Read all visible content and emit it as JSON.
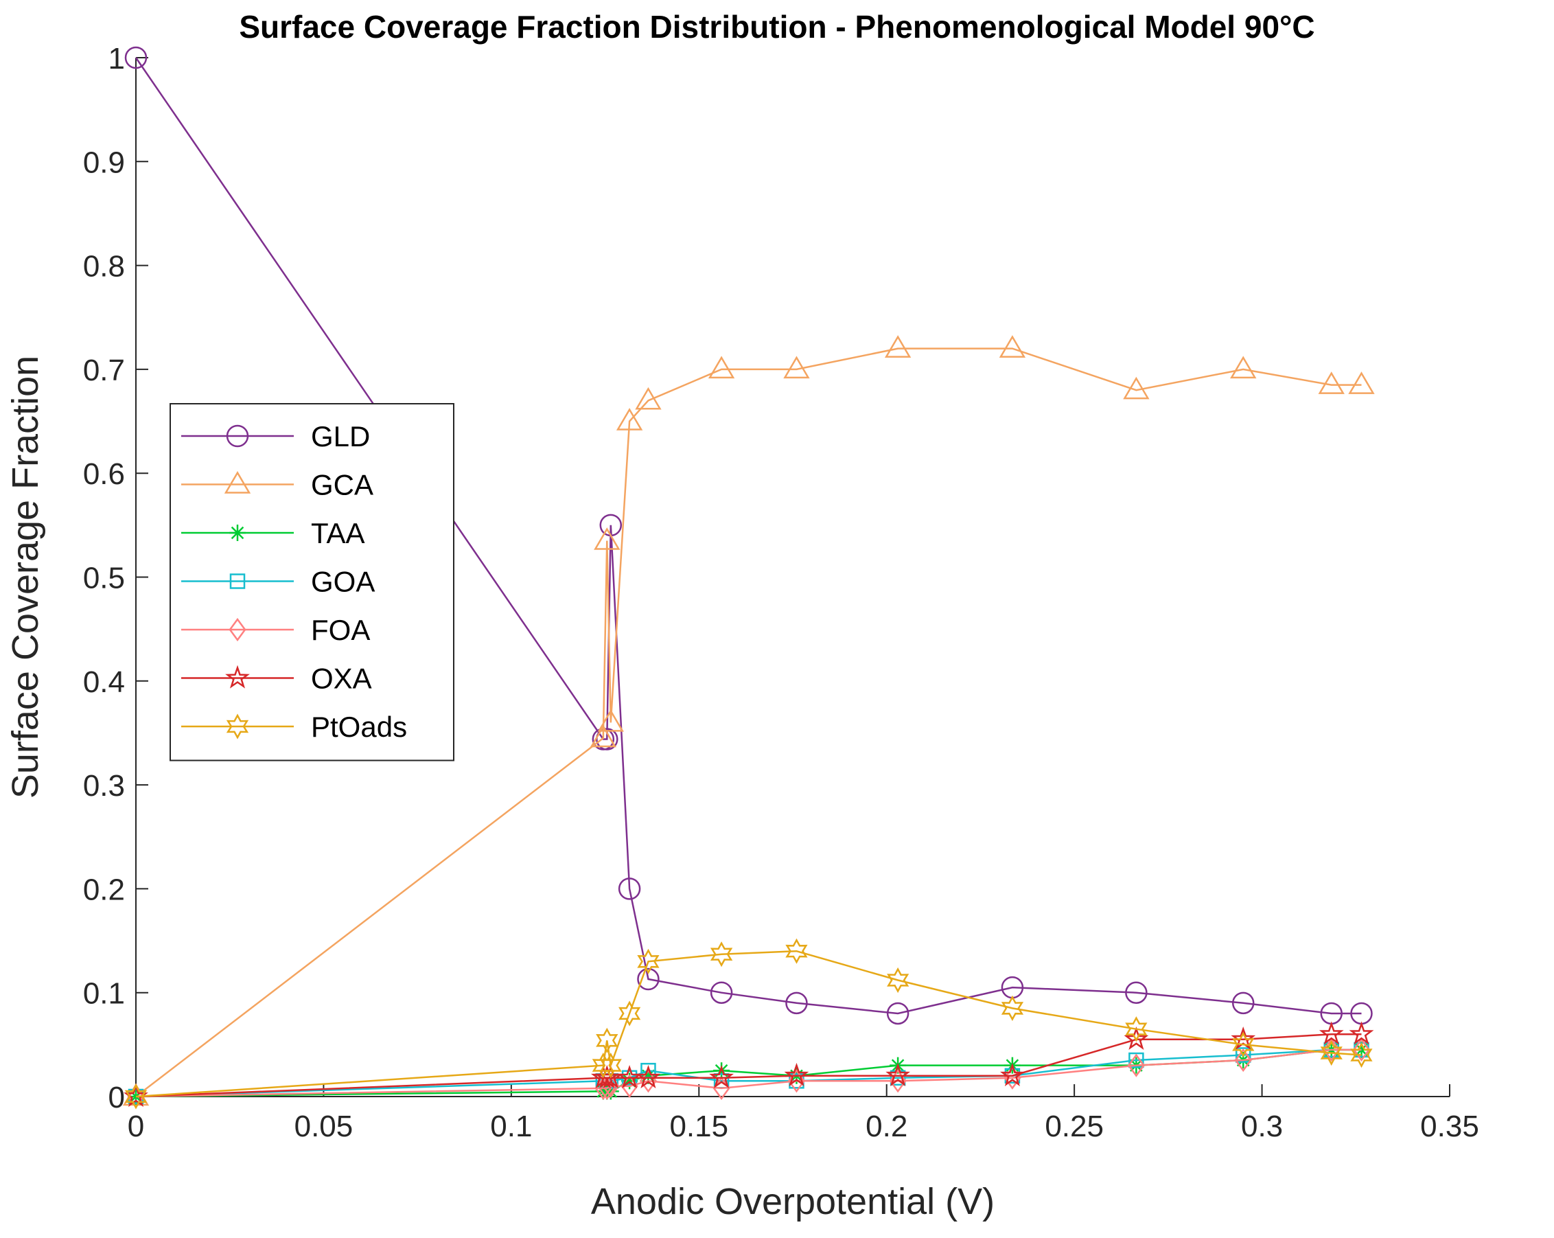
{
  "chart_data": {
    "type": "line",
    "title": "Surface Coverage Fraction Distribution - Phenomenological Model 90°C",
    "xlabel": "Anodic Overpotential (V)",
    "ylabel": "Surface Coverage Fraction",
    "xlim": [
      0,
      0.35
    ],
    "ylim": [
      0,
      1
    ],
    "xticks": [
      0,
      0.05,
      0.1,
      0.15,
      0.2,
      0.25,
      0.3,
      0.35
    ],
    "xtick_labels": [
      "0",
      "0.05",
      "0.1",
      "0.15",
      "0.2",
      "0.25",
      "0.3",
      "0.35"
    ],
    "yticks": [
      0,
      0.1,
      0.2,
      0.3,
      0.4,
      0.5,
      0.6,
      0.7,
      0.8,
      0.9,
      1
    ],
    "ytick_labels": [
      "0",
      "0.1",
      "0.2",
      "0.3",
      "0.4",
      "0.5",
      "0.6",
      "0.7",
      "0.8",
      "0.9",
      "1"
    ],
    "grid": false,
    "legend_position": "left",
    "x": [
      0,
      0.1245,
      0.1255,
      0.1265,
      0.1315,
      0.1365,
      0.156,
      0.176,
      0.203,
      0.2335,
      0.2665,
      0.295,
      0.3185,
      0.3265
    ],
    "series": [
      {
        "name": "GLD",
        "marker": "circle",
        "color": "#7e2f8e",
        "values": [
          1.0,
          0.344,
          0.344,
          0.55,
          0.2,
          0.113,
          0.1,
          0.09,
          0.08,
          0.105,
          0.1,
          0.09,
          0.08,
          0.08
        ]
      },
      {
        "name": "GCA",
        "marker": "triangle",
        "color": "#f4a460",
        "values": [
          0.0,
          0.345,
          0.535,
          0.36,
          0.65,
          0.67,
          0.7,
          0.7,
          0.72,
          0.72,
          0.68,
          0.7,
          0.685,
          0.685
        ]
      },
      {
        "name": "TAA",
        "marker": "asterisk",
        "color": "#00cc33",
        "values": [
          0.0,
          0.005,
          0.005,
          0.005,
          0.015,
          0.02,
          0.025,
          0.02,
          0.03,
          0.03,
          0.03,
          0.035,
          0.045,
          0.045
        ]
      },
      {
        "name": "GOA",
        "marker": "square",
        "color": "#17becf",
        "values": [
          0.0,
          0.015,
          0.015,
          0.015,
          0.018,
          0.025,
          0.015,
          0.015,
          0.018,
          0.02,
          0.035,
          0.04,
          0.045,
          0.045
        ]
      },
      {
        "name": "FOA",
        "marker": "diamond",
        "color": "#ff8080",
        "values": [
          0.0,
          0.008,
          0.008,
          0.01,
          0.01,
          0.015,
          0.008,
          0.015,
          0.015,
          0.018,
          0.03,
          0.035,
          0.045,
          0.045
        ]
      },
      {
        "name": "OXA",
        "marker": "pentagram",
        "color": "#d62728",
        "values": [
          0.0,
          0.018,
          0.018,
          0.018,
          0.018,
          0.018,
          0.018,
          0.02,
          0.02,
          0.02,
          0.055,
          0.055,
          0.06,
          0.06
        ]
      },
      {
        "name": "PtOads",
        "marker": "hexagram",
        "color": "#e6a817",
        "values": [
          0.0,
          0.03,
          0.054,
          0.03,
          0.08,
          0.13,
          0.137,
          0.14,
          0.112,
          0.085,
          0.065,
          0.05,
          0.042,
          0.04
        ]
      }
    ]
  }
}
